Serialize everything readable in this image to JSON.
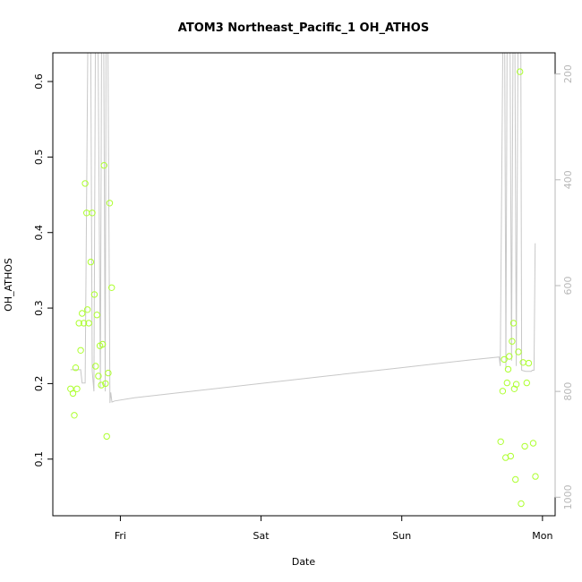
{
  "chart_data": {
    "type": "scatter",
    "title": "ATOM3 Northeast_Pacific_1 OH_ATHOS",
    "xlabel": "Date",
    "ylabel": "OH_ATHOS",
    "x_ticks": [
      {
        "label": "Fri",
        "day": 1
      },
      {
        "label": "Sat",
        "day": 2
      },
      {
        "label": "Sun",
        "day": 3
      },
      {
        "label": "Mon",
        "day": 4
      }
    ],
    "xlim_days": [
      0.52,
      4.09
    ],
    "ylim": [
      0.025,
      0.638
    ],
    "y_ticks": [
      0.1,
      0.2,
      0.3,
      0.4,
      0.5,
      0.6
    ],
    "y2_ticks": [
      200,
      400,
      600,
      800,
      1000
    ],
    "y2lim": [
      1035,
      160
    ],
    "grid": false,
    "legend": "none",
    "colors": {
      "points": "#adff2f",
      "pressure_line": "#c8c8c8",
      "axis": "#000000",
      "right_axis": "#b8b8b8"
    },
    "series": [
      {
        "type": "scatter",
        "axis": "left",
        "points": [
          [
            0.646,
            0.193
          ],
          [
            0.663,
            0.187
          ],
          [
            0.673,
            0.158
          ],
          [
            0.682,
            0.221
          ],
          [
            0.692,
            0.193
          ],
          [
            0.706,
            0.28
          ],
          [
            0.718,
            0.244
          ],
          [
            0.728,
            0.293
          ],
          [
            0.74,
            0.28
          ],
          [
            0.75,
            0.465
          ],
          [
            0.76,
            0.426
          ],
          [
            0.766,
            0.298
          ],
          [
            0.776,
            0.28
          ],
          [
            0.79,
            0.361
          ],
          [
            0.8,
            0.426
          ],
          [
            0.815,
            0.318
          ],
          [
            0.824,
            0.223
          ],
          [
            0.834,
            0.291
          ],
          [
            0.844,
            0.21
          ],
          [
            0.855,
            0.25
          ],
          [
            0.864,
            0.198
          ],
          [
            0.874,
            0.252
          ],
          [
            0.884,
            0.489
          ],
          [
            0.894,
            0.2
          ],
          [
            0.903,
            0.13
          ],
          [
            0.914,
            0.214
          ],
          [
            0.924,
            0.439
          ],
          [
            0.938,
            0.327
          ],
          [
            3.703,
            0.123
          ],
          [
            3.717,
            0.19
          ],
          [
            3.728,
            0.232
          ],
          [
            3.738,
            0.102
          ],
          [
            3.748,
            0.201
          ],
          [
            3.756,
            0.219
          ],
          [
            3.764,
            0.236
          ],
          [
            3.774,
            0.104
          ],
          [
            3.784,
            0.256
          ],
          [
            3.794,
            0.28
          ],
          [
            3.8,
            0.193
          ],
          [
            3.808,
            0.073
          ],
          [
            3.814,
            0.199
          ],
          [
            3.829,
            0.242
          ],
          [
            3.84,
            0.613
          ],
          [
            3.848,
            0.041
          ],
          [
            3.862,
            0.228
          ],
          [
            3.874,
            0.117
          ],
          [
            3.888,
            0.201
          ],
          [
            3.902,
            0.227
          ],
          [
            3.934,
            0.121
          ],
          [
            3.95,
            0.077
          ]
        ]
      },
      {
        "type": "line",
        "axis": "right",
        "points": [
          [
            0.646,
            759
          ],
          [
            0.675,
            759
          ],
          [
            0.718,
            759
          ],
          [
            0.728,
            784
          ],
          [
            0.742,
            784
          ],
          [
            0.75,
            784
          ],
          [
            0.768,
            160
          ],
          [
            0.79,
            160
          ],
          [
            0.8,
            762
          ],
          [
            0.812,
            800
          ],
          [
            0.822,
            160
          ],
          [
            0.842,
            160
          ],
          [
            0.858,
            792
          ],
          [
            0.866,
            160
          ],
          [
            0.882,
            160
          ],
          [
            0.892,
            800
          ],
          [
            0.898,
            160
          ],
          [
            0.912,
            160
          ],
          [
            0.926,
            822
          ],
          [
            0.932,
            802
          ],
          [
            0.94,
            820
          ],
          [
            0.96,
            818
          ],
          [
            1.1,
            812
          ],
          [
            1.5,
            800
          ],
          [
            2.0,
            785
          ],
          [
            2.5,
            770
          ],
          [
            3.0,
            755
          ],
          [
            3.5,
            740
          ],
          [
            3.692,
            735
          ],
          [
            3.7,
            752
          ],
          [
            3.718,
            160
          ],
          [
            3.732,
            160
          ],
          [
            3.74,
            757
          ],
          [
            3.748,
            160
          ],
          [
            3.77,
            160
          ],
          [
            3.78,
            742
          ],
          [
            3.79,
            160
          ],
          [
            3.804,
            160
          ],
          [
            3.814,
            752
          ],
          [
            3.826,
            160
          ],
          [
            3.846,
            160
          ],
          [
            3.852,
            760
          ],
          [
            3.88,
            762
          ],
          [
            3.92,
            762
          ],
          [
            3.928,
            760
          ],
          [
            3.94,
            760
          ],
          [
            3.948,
            520
          ]
        ]
      }
    ]
  }
}
